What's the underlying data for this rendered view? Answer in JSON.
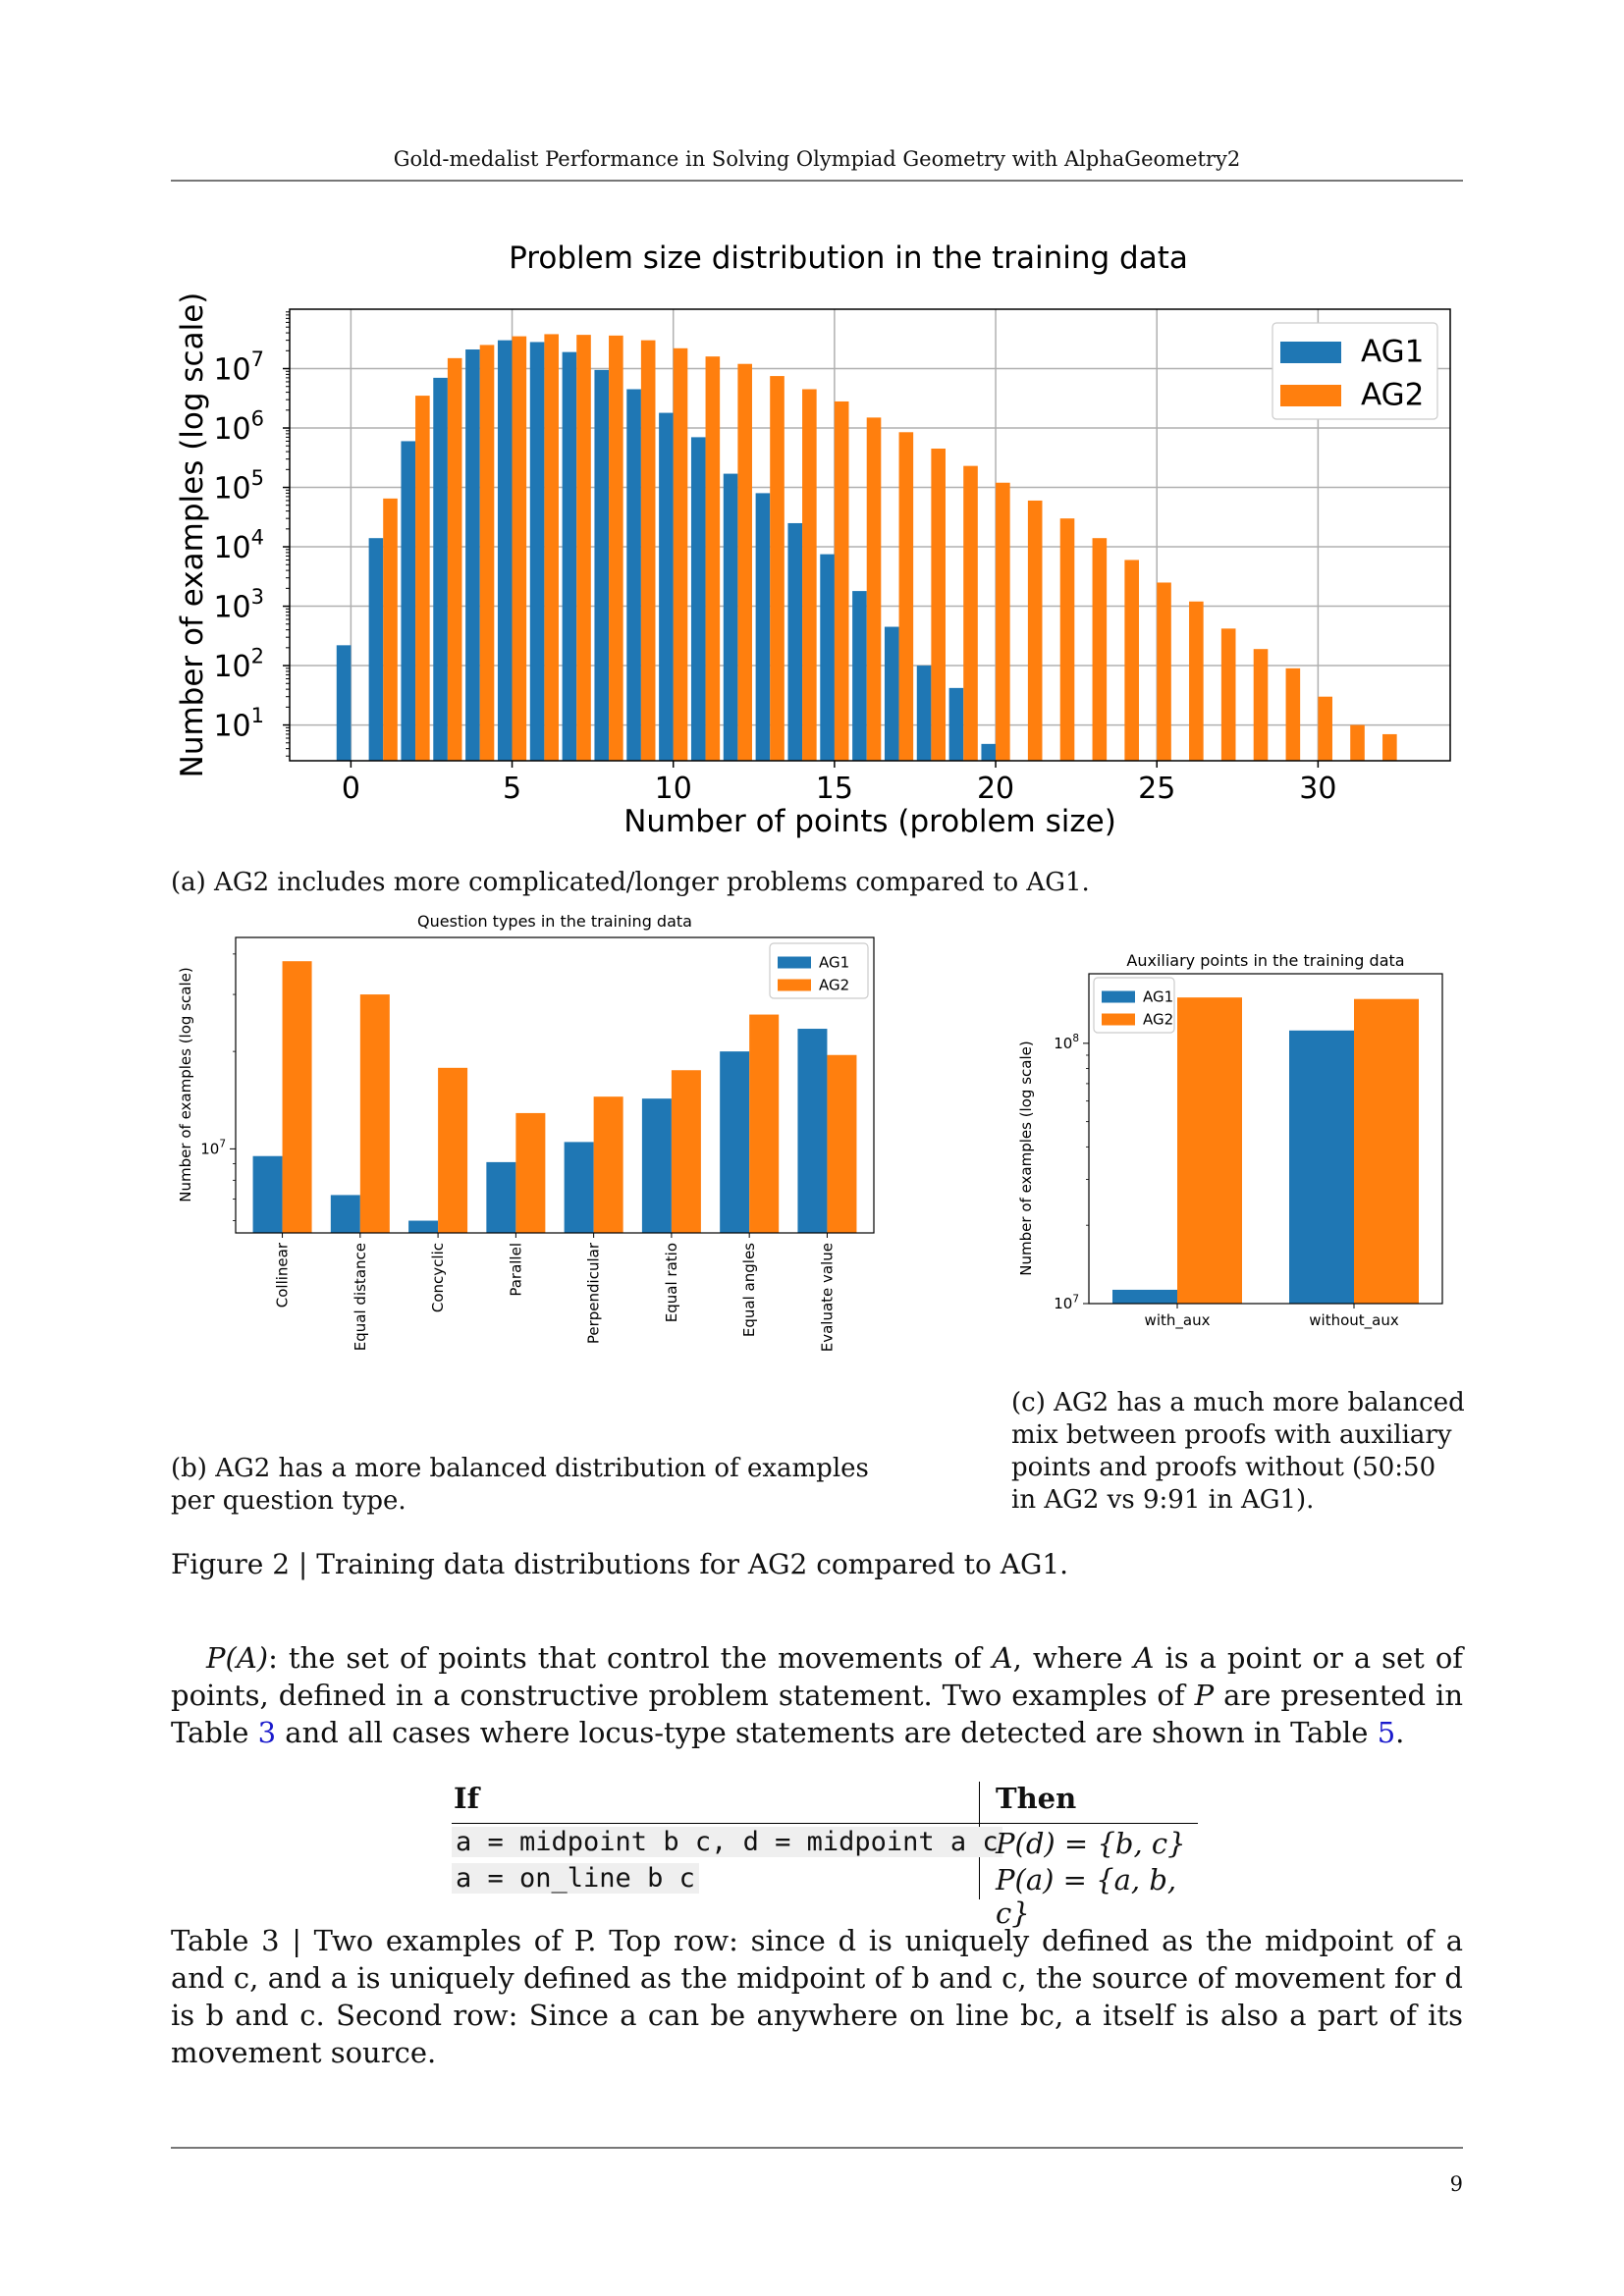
{
  "running_header": "Gold-medalist Performance in Solving Olympiad Geometry with AlphaGeometry2",
  "page_number": "9",
  "figure": {
    "caption": "Figure 2 | Training data distributions for AG2 compared to AG1.",
    "subcaption_a": "(a) AG2 includes more complicated/longer problems compared to AG1.",
    "subcaption_b": "(b) AG2 has a more balanced distribution of examples per question type.",
    "subcaption_c": "(c) AG2 has a much more balanced mix between proofs with auxiliary points and proofs without (50:50 in AG2 vs 9:91 in AG1)."
  },
  "colors": {
    "AG1": "#1f77b4",
    "AG2": "#ff7f0e",
    "grid": "#b0b0b0"
  },
  "chart_data": [
    {
      "type": "bar",
      "title": "Problem size distribution in the training data",
      "xlabel": "Number of points (problem size)",
      "ylabel": "Number of examples (log scale)",
      "yscale": "log",
      "ylim": [
        2.5,
        100000000
      ],
      "xlim": [
        -1.9,
        34.1
      ],
      "grid": true,
      "legend_position": "top-right",
      "x_ticks": [
        "0",
        "5",
        "10",
        "15",
        "20",
        "25",
        "30"
      ],
      "y_ticks": [
        "10",
        "10",
        "10",
        "10",
        "10",
        "10",
        "10"
      ],
      "y_tick_exponents": [
        "1",
        "2",
        "3",
        "4",
        "5",
        "6",
        "7"
      ],
      "series": [
        {
          "name": "AG1",
          "x": [
            0,
            1,
            2,
            3,
            4,
            5,
            6,
            7,
            8,
            9,
            10,
            11,
            12,
            13,
            14,
            15,
            16,
            17,
            18,
            19,
            20
          ],
          "values": [
            220,
            14000,
            600000,
            7000000,
            21000000,
            30000000,
            28000000,
            19000000,
            9500000,
            4500000,
            1800000,
            700000,
            170000,
            80000,
            25000,
            7500,
            1800,
            450,
            100,
            42,
            4.8
          ]
        },
        {
          "name": "AG2",
          "x": [
            1,
            2,
            3,
            4,
            5,
            6,
            7,
            8,
            9,
            10,
            11,
            12,
            13,
            14,
            15,
            16,
            17,
            18,
            19,
            20,
            21,
            22,
            23,
            24,
            25,
            26,
            27,
            28,
            29,
            30,
            31,
            32
          ],
          "values": [
            65000,
            3500000,
            15000000,
            25000000,
            35000000,
            38000000,
            37000000,
            36000000,
            30000000,
            22000000,
            16000000,
            12000000,
            7500000,
            4500000,
            2800000,
            1500000,
            850000,
            450000,
            230000,
            120000,
            60000,
            30000,
            14000,
            6000,
            2500,
            1200,
            420,
            190,
            90,
            30,
            10,
            7
          ]
        }
      ]
    },
    {
      "type": "bar",
      "title": "Question types in the training data",
      "ylabel": "Number of examples (log scale)",
      "yscale": "log",
      "ylim": [
        5500000,
        45000000
      ],
      "y_ticks": [
        "10"
      ],
      "y_tick_exponents": [
        "7"
      ],
      "legend_position": "top-right",
      "categories": [
        "Collinear",
        "Equal distance",
        "Concyclic",
        "Parallel",
        "Perpendicular",
        "Equal ratio",
        "Equal angles",
        "Evaluate value"
      ],
      "series": [
        {
          "name": "AG1",
          "values": [
            9500000,
            7200000,
            6000000,
            9100000,
            10500000,
            14300000,
            20000000,
            23500000
          ]
        },
        {
          "name": "AG2",
          "values": [
            38000000,
            30000000,
            17800000,
            12900000,
            14500000,
            17500000,
            26000000,
            19500000
          ]
        }
      ]
    },
    {
      "type": "bar",
      "title": "Auxiliary points in the training data",
      "ylabel": "Number of examples (log scale)",
      "yscale": "log",
      "ylim": [
        10000000,
        185000000
      ],
      "y_ticks": [
        "10",
        "10"
      ],
      "y_tick_exponents": [
        "7",
        "8"
      ],
      "legend_position": "top-left",
      "categories": [
        "with_aux",
        "without_aux"
      ],
      "series": [
        {
          "name": "AG1",
          "values": [
            11300000,
            112000000
          ]
        },
        {
          "name": "AG2",
          "values": [
            150000000,
            148000000
          ]
        }
      ]
    }
  ],
  "paragraph": {
    "pa": "P",
    "pa_arg": "(A)",
    "text1": ": the set of points that control the movements of ",
    "A1": "A",
    "text2": ", where ",
    "A2": "A",
    "text3": " is a point or a set of points, defined in a constructive problem statement. Two examples of ",
    "P": "P",
    "text4": " are presented in Table ",
    "ref1": "3",
    "text5": " and all cases where locus-type statements are detected are shown in Table ",
    "ref2": "5",
    "text6": "."
  },
  "table": {
    "headers": [
      "If",
      "Then"
    ],
    "rows": [
      {
        "if": "a = midpoint b c, d = midpoint a c",
        "then": "P(d) = {b, c}"
      },
      {
        "if": "a = on_line b c",
        "then": "P(a) = {a, b, c}"
      }
    ],
    "caption": "Table 3 | Two examples of P. Top row: since d is uniquely defined as the midpoint of a and c, and a is uniquely defined as the midpoint of b and c, the source of movement for d is b and c. Second row: Since a can be anywhere on line bc, a itself is also a part of its movement source."
  }
}
